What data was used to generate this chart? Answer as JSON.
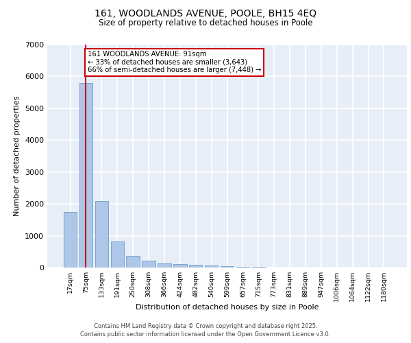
{
  "title1": "161, WOODLANDS AVENUE, POOLE, BH15 4EQ",
  "title2": "Size of property relative to detached houses in Poole",
  "xlabel": "Distribution of detached houses by size in Poole",
  "ylabel": "Number of detached properties",
  "categories": [
    "17sqm",
    "75sqm",
    "133sqm",
    "191sqm",
    "250sqm",
    "308sqm",
    "366sqm",
    "424sqm",
    "482sqm",
    "540sqm",
    "599sqm",
    "657sqm",
    "715sqm",
    "773sqm",
    "831sqm",
    "889sqm",
    "947sqm",
    "1006sqm",
    "1064sqm",
    "1122sqm",
    "1180sqm"
  ],
  "values": [
    1750,
    5800,
    2100,
    820,
    370,
    210,
    130,
    100,
    90,
    70,
    40,
    30,
    15,
    10,
    8,
    6,
    4,
    3,
    2,
    2,
    1
  ],
  "bar_color": "#aec6e8",
  "bar_edge_color": "#5a8fc2",
  "bg_color": "#e8eef8",
  "grid_color": "#ffffff",
  "red_line_index": 1,
  "annotation_title": "161 WOODLANDS AVENUE: 91sqm",
  "annotation_line1": "← 33% of detached houses are smaller (3,643)",
  "annotation_line2": "66% of semi-detached houses are larger (7,448) →",
  "annotation_box_color": "#ffffff",
  "annotation_border_color": "#cc0000",
  "red_line_color": "#cc0000",
  "footer1": "Contains HM Land Registry data © Crown copyright and database right 2025.",
  "footer2": "Contains public sector information licensed under the Open Government Licence v3.0.",
  "ylim": [
    0,
    7000
  ],
  "yticks": [
    0,
    1000,
    2000,
    3000,
    4000,
    5000,
    6000,
    7000
  ]
}
